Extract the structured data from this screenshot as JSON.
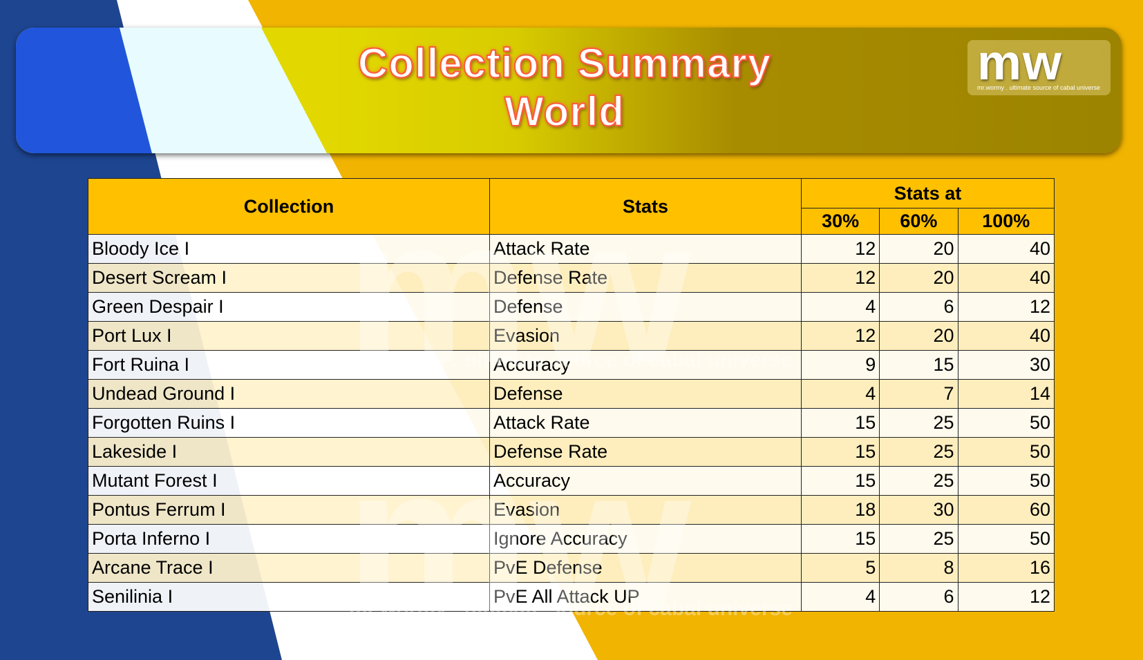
{
  "header": {
    "title_line1": "Collection Summary",
    "title_line2": "World",
    "logo_text": "mw",
    "logo_tagline": "mr.wormy . ultimate source of cabal universe"
  },
  "colors": {
    "header_bg": "#ffc000",
    "alt_row": "#fff2cc",
    "bg_blue": "#1e4590",
    "bg_yellow": "#f1b400"
  },
  "table": {
    "headers": {
      "collection": "Collection",
      "stats": "Stats",
      "stats_at": "Stats at",
      "p30": "30%",
      "p60": "60%",
      "p100": "100%"
    },
    "rows": [
      {
        "collection": "Bloody Ice I",
        "stat": "Attack Rate",
        "p30": "12",
        "p60": "20",
        "p100": "40"
      },
      {
        "collection": "Desert Scream I",
        "stat": "Defense Rate",
        "p30": "12",
        "p60": "20",
        "p100": "40"
      },
      {
        "collection": "Green Despair I",
        "stat": "Defense",
        "p30": "4",
        "p60": "6",
        "p100": "12"
      },
      {
        "collection": "Port Lux I",
        "stat": "Evasion",
        "p30": "12",
        "p60": "20",
        "p100": "40"
      },
      {
        "collection": "Fort Ruina I",
        "stat": "Accuracy",
        "p30": "9",
        "p60": "15",
        "p100": "30"
      },
      {
        "collection": "Undead Ground I",
        "stat": "Defense",
        "p30": "4",
        "p60": "7",
        "p100": "14"
      },
      {
        "collection": "Forgotten Ruins I",
        "stat": "Attack Rate",
        "p30": "15",
        "p60": "25",
        "p100": "50"
      },
      {
        "collection": "Lakeside I",
        "stat": "Defense Rate",
        "p30": "15",
        "p60": "25",
        "p100": "50"
      },
      {
        "collection": "Mutant Forest I",
        "stat": "Accuracy",
        "p30": "15",
        "p60": "25",
        "p100": "50"
      },
      {
        "collection": "Pontus Ferrum I",
        "stat": "Evasion",
        "p30": "18",
        "p60": "30",
        "p100": "60"
      },
      {
        "collection": "Porta Inferno I",
        "stat": "Ignore Accuracy",
        "p30": "15",
        "p60": "25",
        "p100": "50"
      },
      {
        "collection": "Arcane Trace I",
        "stat": "PvE Defense",
        "p30": "5",
        "p60": "8",
        "p100": "16"
      },
      {
        "collection": "Senilinia I",
        "stat": "PvE All Attack UP",
        "p30": "4",
        "p60": "6",
        "p100": "12"
      }
    ]
  }
}
